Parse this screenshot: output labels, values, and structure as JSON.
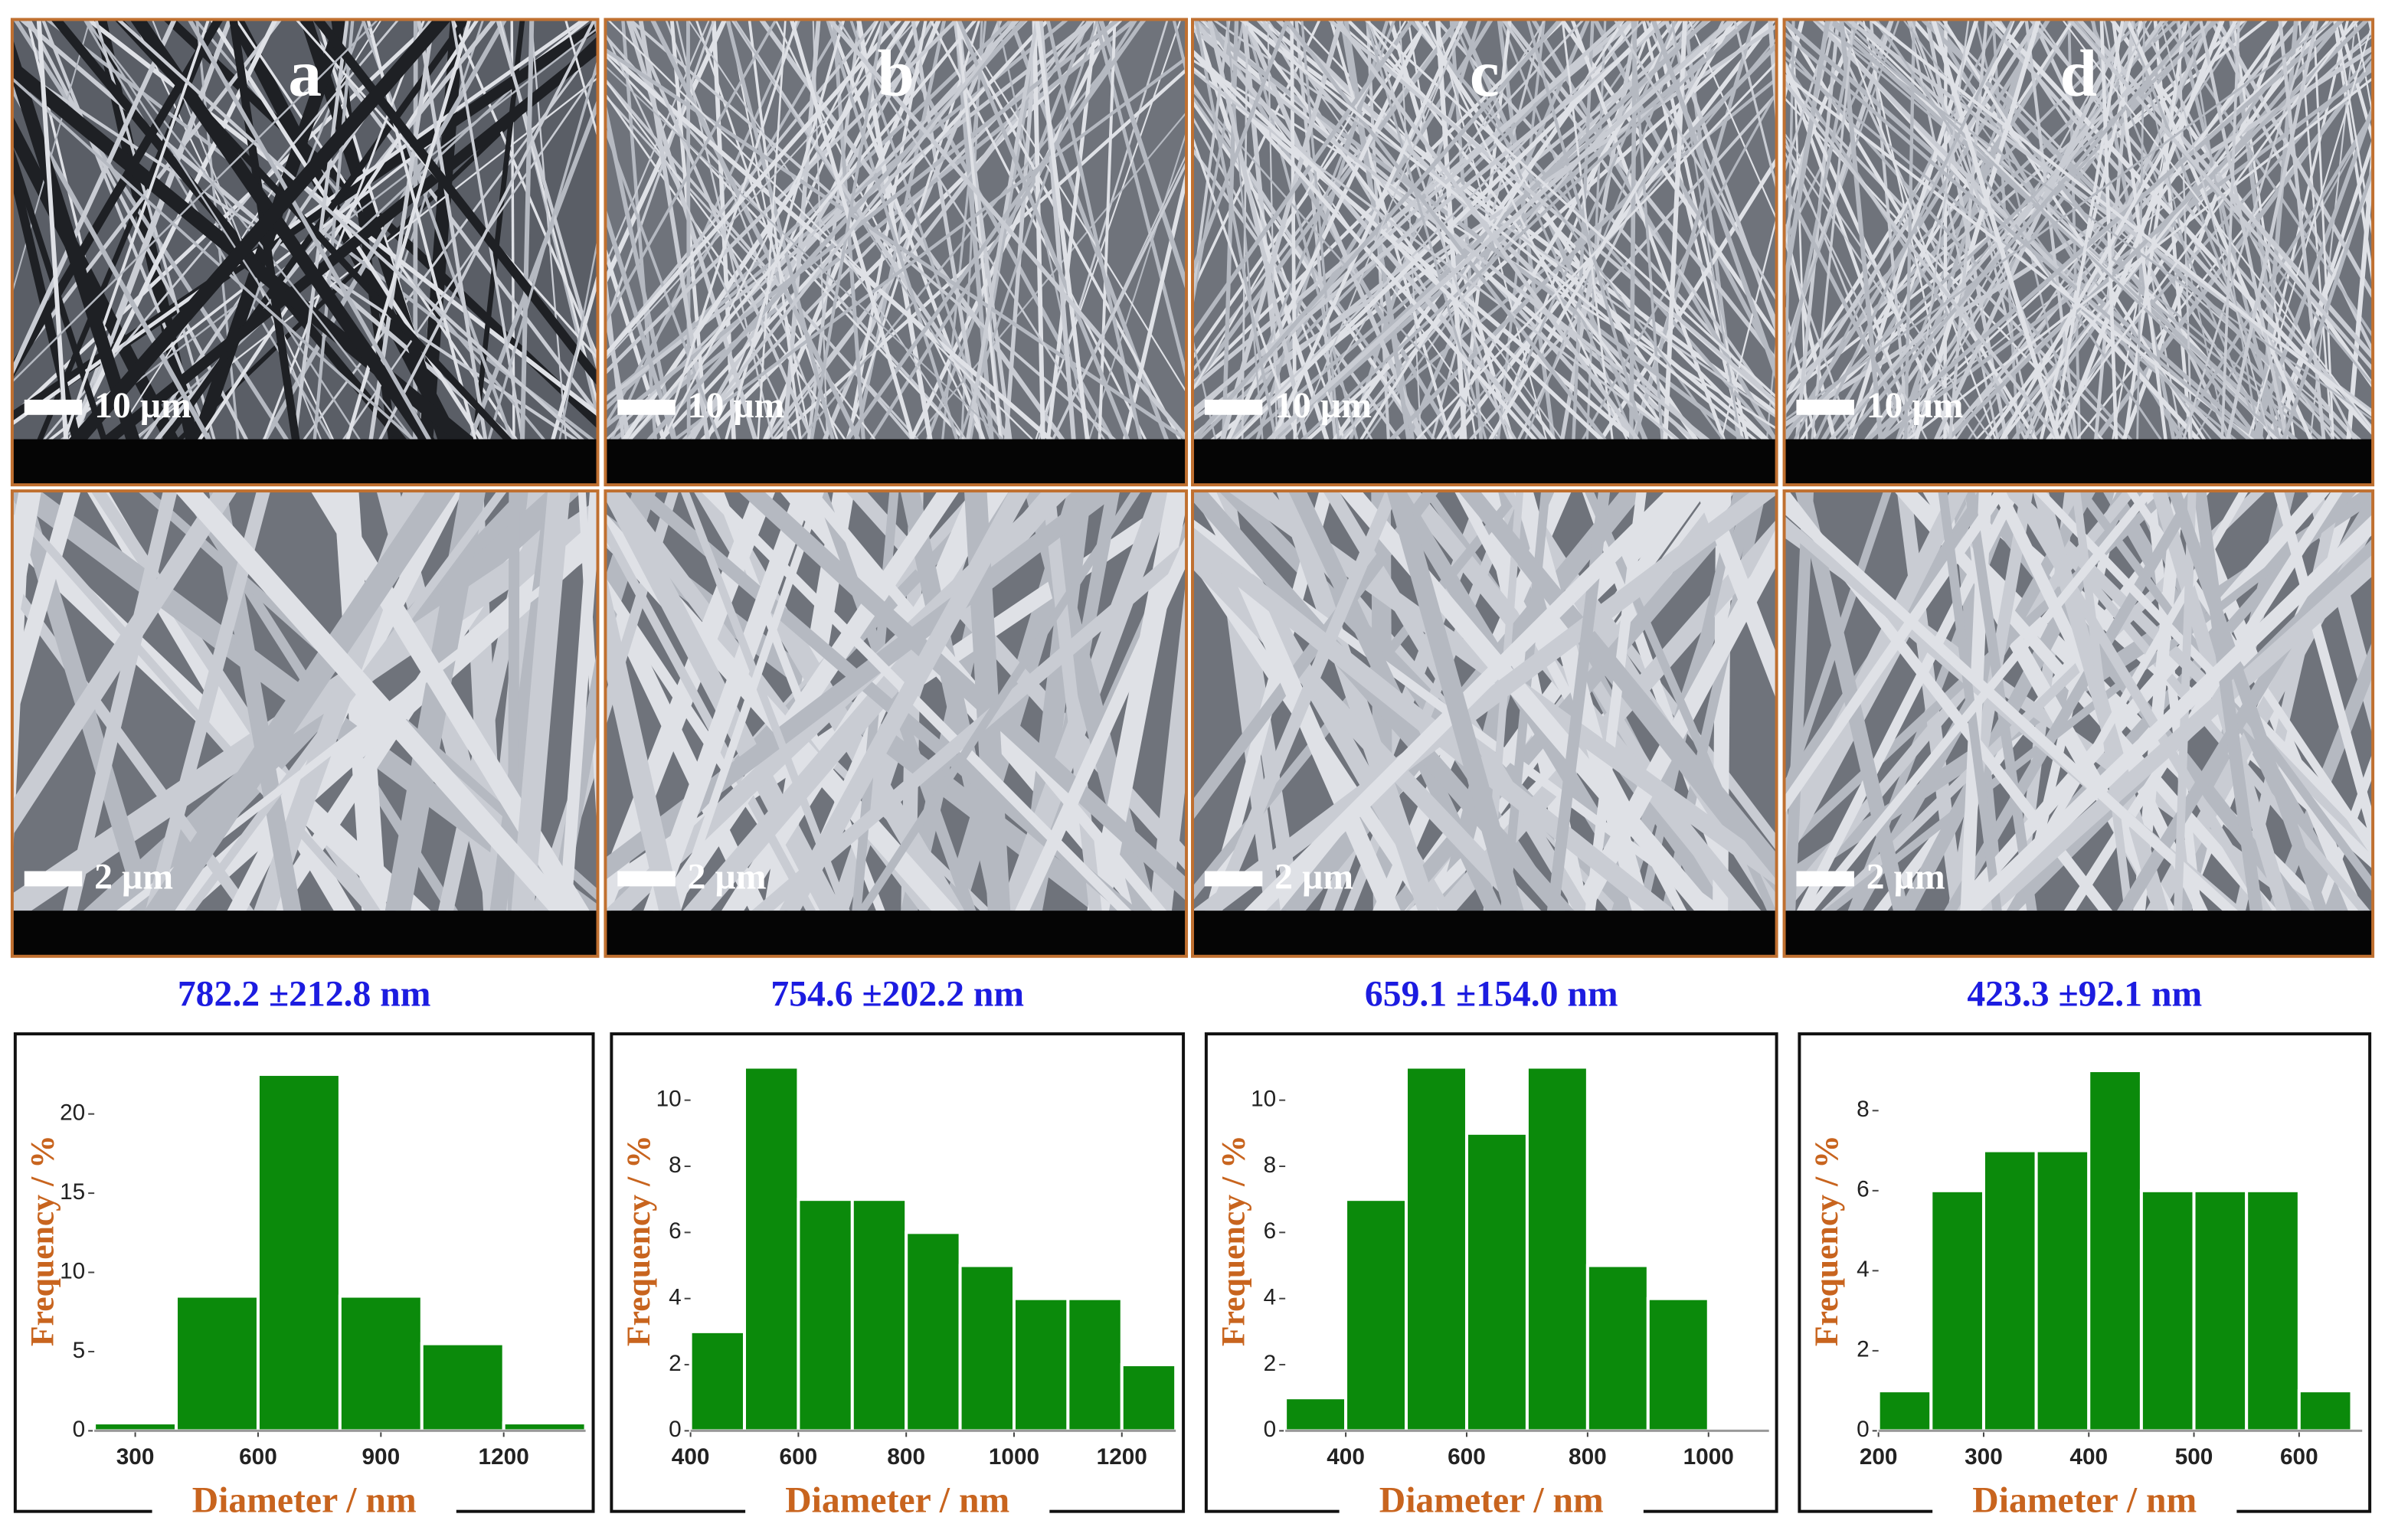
{
  "chart_data": [
    {
      "type": "histogram",
      "panel": "a",
      "scale_bars": [
        "10 µm",
        "2 µm"
      ],
      "title": "782.2 ±212.8 nm",
      "x_label": "Diameter / nm",
      "y_label": "Frequency / %",
      "color": "#0b8a0b",
      "bins": [
        200,
        400,
        600,
        800,
        1000,
        1200,
        1400
      ],
      "values": [
        0.5,
        8.5,
        22.5,
        8.5,
        5.5,
        0.5
      ],
      "xlim": [
        200,
        1400
      ],
      "xticks": [
        300,
        600,
        900,
        1200
      ],
      "ylim": [
        0,
        24
      ],
      "yticks": [
        0,
        5,
        10,
        15,
        20
      ]
    },
    {
      "type": "histogram",
      "panel": "b",
      "scale_bars": [
        "10 µm",
        "2 µm"
      ],
      "title": "754.6 ±202.2 nm",
      "x_label": "Diameter / nm",
      "y_label": "Frequency / %",
      "color": "#0b8a0b",
      "bins": [
        400,
        500,
        600,
        700,
        800,
        900,
        1000,
        1100,
        1200,
        1300
      ],
      "values": [
        3,
        11,
        7,
        7,
        6,
        5,
        4,
        4,
        2
      ],
      "xlim": [
        400,
        1300
      ],
      "xticks": [
        400,
        600,
        800,
        1000,
        1200
      ],
      "ylim": [
        0,
        11.5
      ],
      "yticks": [
        0,
        2,
        4,
        6,
        8,
        10
      ]
    },
    {
      "type": "histogram",
      "panel": "c",
      "scale_bars": [
        "10 µm",
        "2 µm"
      ],
      "title": "659.1 ±154.0 nm",
      "x_label": "Diameter / nm",
      "y_label": "Frequency / %",
      "color": "#0b8a0b",
      "bins": [
        300,
        400,
        500,
        600,
        700,
        800,
        900,
        1000
      ],
      "values": [
        1,
        7,
        11,
        9,
        11,
        5,
        4
      ],
      "xlim": [
        300,
        1100
      ],
      "xticks": [
        400,
        600,
        800,
        1000
      ],
      "ylim": [
        0,
        11.5
      ],
      "yticks": [
        0,
        2,
        4,
        6,
        8,
        10
      ]
    },
    {
      "type": "histogram",
      "panel": "d",
      "scale_bars": [
        "10 µm",
        "2 µm"
      ],
      "title": "423.3 ±92.1 nm",
      "x_label": "Diameter / nm",
      "y_label": "Frequency / %",
      "color": "#0b8a0b",
      "bins": [
        200,
        250,
        300,
        350,
        400,
        450,
        500,
        550,
        600,
        650
      ],
      "values": [
        1,
        6,
        7,
        7,
        9,
        6,
        6,
        6,
        1
      ],
      "xlim": [
        200,
        660
      ],
      "xticks": [
        200,
        300,
        400,
        500,
        600
      ],
      "ylim": [
        0,
        9.5
      ],
      "yticks": [
        0,
        2,
        4,
        6,
        8
      ]
    }
  ]
}
